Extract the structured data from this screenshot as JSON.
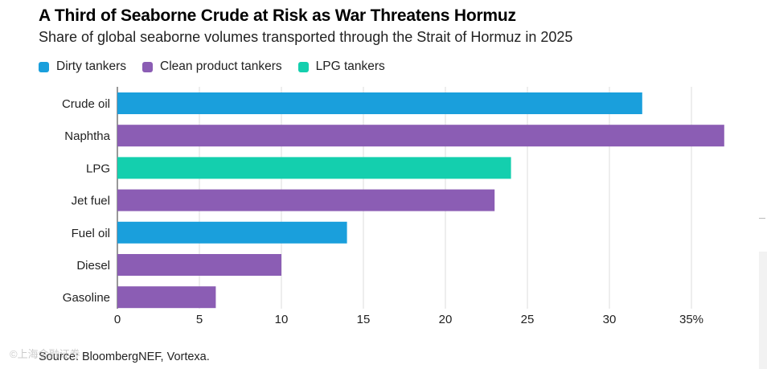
{
  "title": "A Third of Seaborne Crude at Risk as War Threatens Hormuz",
  "subtitle": "Share of global seaborne volumes transported through the Strait of Hormuz in 2025",
  "legend": [
    {
      "label": "Dirty tankers",
      "color": "#1a9fdc"
    },
    {
      "label": "Clean product tankers",
      "color": "#8b5db4"
    },
    {
      "label": "LPG tankers",
      "color": "#14cfae"
    }
  ],
  "source": "Source: BloombergNEF, Vortexa.",
  "watermark": "©上海金融证券",
  "chart_data": {
    "type": "bar",
    "orientation": "horizontal",
    "categories": [
      "Crude oil",
      "Naphtha",
      "LPG",
      "Jet fuel",
      "Fuel oil",
      "Diesel",
      "Gasoline"
    ],
    "values": [
      32,
      37,
      24,
      23,
      14,
      10,
      6
    ],
    "groups": [
      "Dirty tankers",
      "Clean product tankers",
      "LPG tankers",
      "Clean product tankers",
      "Dirty tankers",
      "Clean product tankers",
      "Clean product tankers"
    ],
    "xlim": [
      0,
      37
    ],
    "xticks": [
      0,
      5,
      10,
      15,
      20,
      25,
      30,
      35
    ],
    "xtick_labels": [
      "0",
      "5",
      "10",
      "15",
      "20",
      "25",
      "30",
      "35%"
    ],
    "grid": true,
    "legend_position": "top-left"
  }
}
